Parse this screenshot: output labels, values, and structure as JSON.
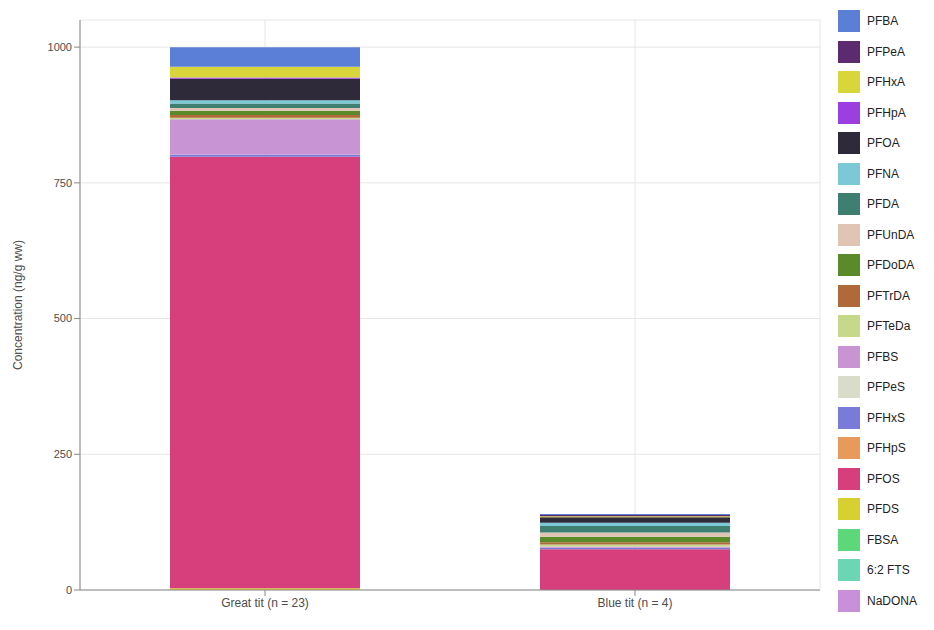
{
  "chart_data": {
    "type": "bar",
    "stacked": true,
    "grid": true,
    "legend": "right",
    "y_label": "Concentration (ng/g ww)",
    "categories": [
      "Great tit (n = 23)",
      "Blue tit (n = 4)"
    ],
    "ylim": [
      0,
      1050
    ],
    "yticks": [
      0,
      250,
      500,
      750,
      1000
    ],
    "series": [
      {
        "name": "PFBA",
        "color": "#5b7fd6",
        "values": [
          36,
          2
        ]
      },
      {
        "name": "PFPeA",
        "color": "#5c2a6e",
        "values": [
          0,
          2
        ]
      },
      {
        "name": "PFHxA",
        "color": "#d8d63a",
        "values": [
          20,
          2
        ]
      },
      {
        "name": "PFHpA",
        "color": "#9b3fe0",
        "values": [
          2,
          0
        ]
      },
      {
        "name": "PFOA",
        "color": "#2e2a3a",
        "values": [
          40,
          10
        ]
      },
      {
        "name": "PFNA",
        "color": "#7cc8d6",
        "values": [
          6,
          6
        ]
      },
      {
        "name": "PFDA",
        "color": "#3e7f72",
        "values": [
          8,
          12
        ]
      },
      {
        "name": "PFUnDA",
        "color": "#e0c4b4",
        "values": [
          5,
          8
        ]
      },
      {
        "name": "PFDoDA",
        "color": "#5a8a2a",
        "values": [
          8,
          10
        ]
      },
      {
        "name": "PFTrDA",
        "color": "#b06a3a",
        "values": [
          5,
          4
        ]
      },
      {
        "name": "PFTeDa",
        "color": "#c6d88a",
        "values": [
          3,
          4
        ]
      },
      {
        "name": "PFBS",
        "color": "#c894d4",
        "values": [
          65,
          2
        ]
      },
      {
        "name": "PFPeS",
        "color": "#d8dcc8",
        "values": [
          0,
          0
        ]
      },
      {
        "name": "PFHxS",
        "color": "#7a7ad8",
        "values": [
          4,
          3
        ]
      },
      {
        "name": "PFHpS",
        "color": "#e89a5a",
        "values": [
          0,
          0
        ]
      },
      {
        "name": "PFOS",
        "color": "#d63f7c",
        "values": [
          795,
          75
        ]
      },
      {
        "name": "PFDS",
        "color": "#d8d030",
        "values": [
          3,
          0
        ]
      },
      {
        "name": "FBSA",
        "color": "#5cd87a",
        "values": [
          0,
          0
        ]
      },
      {
        "name": "6:2 FTS",
        "color": "#6cd6b4",
        "values": [
          0,
          0
        ]
      },
      {
        "name": "NaDONA",
        "color": "#c890d8",
        "values": [
          0,
          0
        ]
      }
    ]
  }
}
